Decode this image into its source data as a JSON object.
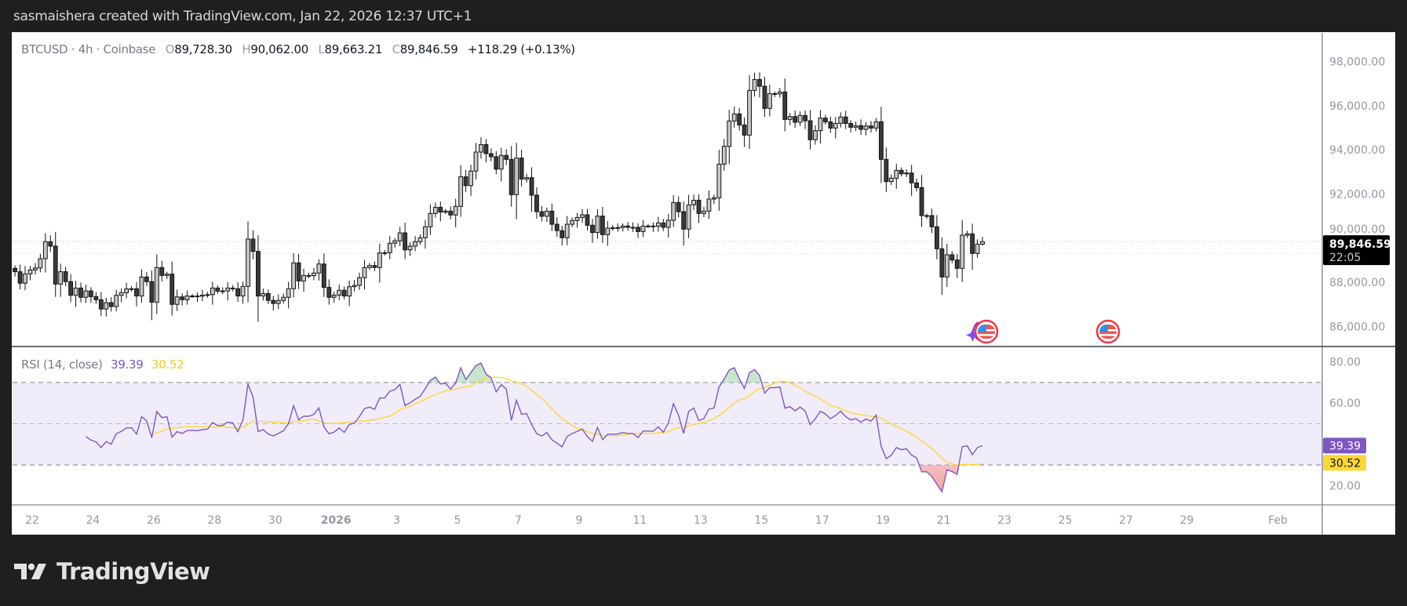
{
  "header": {
    "title": "sasmaishera created with TradingView.com, Jan 22, 2026 12:37 UTC+1"
  },
  "legend": {
    "symbol": "BTCUSD · 4h · Coinbase",
    "o_label": "O",
    "o": "89,728.30",
    "h_label": "H",
    "h": "90,062.00",
    "l_label": "L",
    "l": "89,663.21",
    "c_label": "C",
    "c": "89,846.59",
    "change": "+118.29 (+0.13%)"
  },
  "rsi_legend": {
    "label": "RSI (14, close)",
    "rsi": "39.39",
    "ma": "30.52"
  },
  "price_badge": {
    "price": "89,846.59",
    "countdown": "22:05"
  },
  "rsi_badges": {
    "rsi": "39.39",
    "ma": "30.52"
  },
  "branding": {
    "logo_text": "TradingView"
  },
  "colors": {
    "rsi_line": "#7e57c2",
    "rsi_ma": "#fdd835",
    "rsi_band": "#f0ecf9",
    "candle_up": "#c8c8cc",
    "candle_down": "#3a3a3a",
    "price_badge": "#000000",
    "overbought_fill": "#c8e6c9",
    "oversold_fill": "#f8bbbb"
  },
  "events": [
    {
      "icon": "us-flag-icon",
      "with_sparkle": true
    },
    {
      "icon": "us-flag-icon",
      "with_sparkle": false
    }
  ],
  "chart_data": [
    {
      "type": "candlestick",
      "symbol": "BTCUSD",
      "interval": "4h",
      "exchange": "Coinbase",
      "ylim": [
        85300,
        98700
      ],
      "y_ticks": [
        "86,000.00",
        "88,000.00",
        "90,000.00",
        "92,000.00",
        "94,000.00",
        "96,000.00",
        "98,000.00"
      ],
      "y_tick_values": [
        86000,
        88000,
        90000,
        92000,
        94000,
        96000,
        98000
      ],
      "last_candle": {
        "open": 89728.3,
        "high": 90062.0,
        "low": 89663.21,
        "close": 89846.59
      },
      "current_price_line": 89846.59,
      "reference_line": 89300,
      "closes": [
        88480,
        87960,
        88380,
        88560,
        88650,
        89070,
        89840,
        89640,
        87920,
        88480,
        88030,
        87410,
        87740,
        87320,
        87610,
        87350,
        87210,
        86790,
        87080,
        86900,
        87410,
        87530,
        87700,
        87710,
        87380,
        88240,
        88030,
        87100,
        88670,
        88310,
        88370,
        87000,
        87340,
        87210,
        87380,
        87380,
        87370,
        87420,
        87440,
        87740,
        87600,
        87610,
        87740,
        87710,
        87380,
        87815,
        89960,
        89400,
        87380,
        87490,
        87180,
        87040,
        87180,
        87320,
        87710,
        88880,
        88060,
        88310,
        88300,
        88420,
        88830,
        87770,
        87320,
        87420,
        87640,
        87380,
        87800,
        87860,
        88210,
        88670,
        88760,
        88670,
        89330,
        89340,
        89770,
        89880,
        90240,
        89470,
        89640,
        89840,
        90020,
        90515,
        91120,
        91400,
        91180,
        91225,
        91050,
        91440,
        92780,
        92380,
        93040,
        93900,
        94240,
        93830,
        93690,
        93130,
        93750,
        93570,
        91970,
        93630,
        92680,
        92740,
        91950,
        91200,
        90990,
        91225,
        90630,
        90340,
        90020,
        90630,
        90800,
        90940,
        91060,
        90585,
        90255,
        91000,
        90160,
        90455,
        90470,
        90480,
        90550,
        90490,
        90490,
        90300,
        90550,
        90550,
        90540,
        90690,
        90490,
        90810,
        91615,
        91200,
        90410,
        91510,
        91720,
        91120,
        91225,
        91770,
        91830,
        93355,
        94160,
        95310,
        95630,
        95130,
        94670,
        96695,
        97190,
        96885,
        95880,
        96550,
        96540,
        96625,
        95380,
        95510,
        95250,
        95560,
        95320,
        94460,
        94870,
        95440,
        95270,
        94990,
        95200,
        95490,
        95200,
        95025,
        95100,
        94930,
        95085,
        94990,
        95275,
        93570,
        92563,
        92717,
        93072,
        92918,
        92953,
        92504,
        92290,
        91023,
        91023,
        90515,
        89520,
        88241,
        89248,
        89011,
        88632,
        90136,
        90195,
        89307,
        89728.3,
        89846.59
      ]
    },
    {
      "type": "line",
      "indicator": "RSI (14, close)",
      "series": [
        {
          "name": "RSI",
          "last": 39.39
        },
        {
          "name": "RSI MA",
          "last": 30.52
        }
      ],
      "ylim": [
        12,
        88
      ],
      "y_ticks": [
        "20.00",
        "60.00",
        "80.00"
      ],
      "y_tick_values": [
        20,
        60,
        80
      ],
      "bands": {
        "upper": 70,
        "middle": 50,
        "lower": 30
      }
    }
  ],
  "x_axis": {
    "ticks": [
      {
        "date": "2025-12-22",
        "label": "22"
      },
      {
        "date": "2025-12-24",
        "label": "24"
      },
      {
        "date": "2025-12-26",
        "label": "26"
      },
      {
        "date": "2025-12-28",
        "label": "28"
      },
      {
        "date": "2025-12-30",
        "label": "30"
      },
      {
        "date": "2026-01-01",
        "label": "2026",
        "bold": true
      },
      {
        "date": "2026-01-03",
        "label": "3"
      },
      {
        "date": "2026-01-05",
        "label": "5"
      },
      {
        "date": "2026-01-07",
        "label": "7"
      },
      {
        "date": "2026-01-09",
        "label": "9"
      },
      {
        "date": "2026-01-11",
        "label": "11"
      },
      {
        "date": "2026-01-13",
        "label": "13"
      },
      {
        "date": "2026-01-15",
        "label": "15"
      },
      {
        "date": "2026-01-17",
        "label": "17"
      },
      {
        "date": "2026-01-19",
        "label": "19"
      },
      {
        "date": "2026-01-21",
        "label": "21"
      },
      {
        "date": "2026-01-23",
        "label": "23"
      },
      {
        "date": "2026-01-25",
        "label": "25"
      },
      {
        "date": "2026-01-27",
        "label": "27"
      },
      {
        "date": "2026-01-29",
        "label": "29"
      },
      {
        "date": "2026-02-01",
        "label": "Feb"
      }
    ]
  }
}
